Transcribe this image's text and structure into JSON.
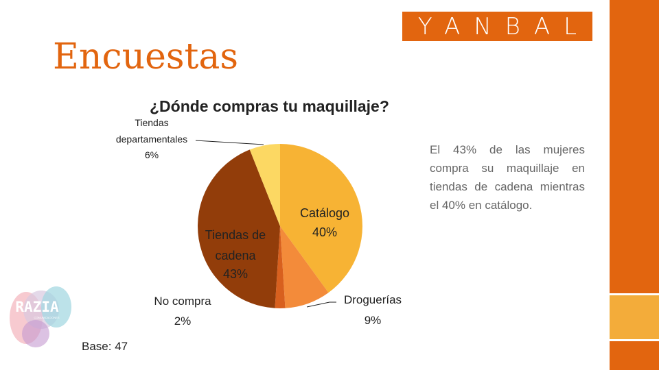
{
  "page": {
    "title": "Encuestas",
    "base_label": "Base: 47"
  },
  "logo": {
    "text": "YANBAL",
    "color": "#e2650f"
  },
  "razia_logo": {
    "text": "RAZIA",
    "subtext": "COMUNICACIONES"
  },
  "description": "El 43% de las mujeres compra su maquillaje en tiendas de cadena mientras el 40% en catálogo.",
  "chart_data": {
    "type": "pie",
    "title": "¿Dónde compras tu maquillaje?",
    "slices": [
      {
        "label": "Catálogo",
        "value": 40,
        "value_label": "40%",
        "color": "#f7b334"
      },
      {
        "label": "Droguerías",
        "value": 9,
        "value_label": "9%",
        "color": "#f38b3a"
      },
      {
        "label": "No compra",
        "value": 2,
        "value_label": "2%",
        "color": "#d8601e"
      },
      {
        "label": "Tiendas de cadena",
        "value": 43,
        "value_label": "43%",
        "color": "#923d0a"
      },
      {
        "label": "Tiendas departamentales",
        "value": 6,
        "value_label": "6%",
        "color": "#fcd863"
      }
    ]
  },
  "colors": {
    "accent": "#e2650f",
    "accent_light": "#f3ac3a"
  }
}
